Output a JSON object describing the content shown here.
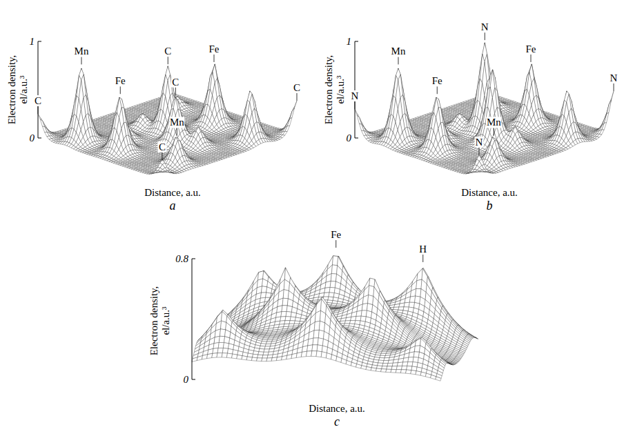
{
  "chart_data": [
    {
      "type": "surface",
      "panel": "a",
      "y_label": "Electron density, el/a.u.³",
      "x_label": "Distance, a.u.",
      "ylim": [
        0,
        1
      ],
      "yticks": [
        0,
        1
      ],
      "tick_labels": "y",
      "peaks": [
        {
          "u": 0,
          "v": 0,
          "density": 0.25
        },
        {
          "u": 1,
          "v": 0,
          "density": 0.2
        },
        {
          "u": 1,
          "v": 1,
          "density": 0.35
        },
        {
          "u": 0.45,
          "v": 0.55,
          "density": 0.7
        },
        {
          "u": 0.62,
          "v": 0.45,
          "density": 0.5
        },
        {
          "u": 0.22,
          "v": 0.12,
          "density": 0.8
        },
        {
          "u": 0.88,
          "v": 0.22,
          "density": 0.3
        },
        {
          "u": 0.5,
          "v": 0.15,
          "density": 0.6
        },
        {
          "u": 0.55,
          "v": 0.8,
          "density": 0.65
        },
        {
          "u": 0.9,
          "v": 0.75,
          "density": 0.55
        },
        {
          "u": 0.3,
          "v": 0.5,
          "density": 0.15
        },
        {
          "u": 0.75,
          "v": 0.5,
          "density": 0.2
        },
        {
          "u": 0.2,
          "v": 0.85,
          "density": 0.12
        },
        {
          "u": 0.38,
          "v": 0.3,
          "density": 0.18
        }
      ],
      "annotations": [
        {
          "text": "C",
          "peak": 0
        },
        {
          "text": "C",
          "peak": 1
        },
        {
          "text": "C",
          "peak": 2
        },
        {
          "text": "C",
          "peak": 3
        },
        {
          "text": "C",
          "peak": 4
        },
        {
          "text": "Mn",
          "peak": 5
        },
        {
          "text": "Mn",
          "peak": 6
        },
        {
          "text": "Fe",
          "peak": 7
        },
        {
          "text": "Fe",
          "peak": 8
        }
      ]
    },
    {
      "type": "surface",
      "panel": "b",
      "y_label": "Electron density, el/a.u.³",
      "x_label": "Distance, a.u.",
      "ylim": [
        0,
        1
      ],
      "yticks": [
        0,
        1
      ],
      "tick_labels": "y",
      "peaks": [
        {
          "u": 0,
          "v": 0,
          "density": 0.3
        },
        {
          "u": 1,
          "v": 0,
          "density": 0.25
        },
        {
          "u": 1,
          "v": 1,
          "density": 0.45
        },
        {
          "u": 0.45,
          "v": 0.55,
          "density": 0.95
        },
        {
          "u": 0.62,
          "v": 0.45,
          "density": 0.8
        },
        {
          "u": 0.22,
          "v": 0.12,
          "density": 0.8
        },
        {
          "u": 0.88,
          "v": 0.22,
          "density": 0.3
        },
        {
          "u": 0.5,
          "v": 0.15,
          "density": 0.6
        },
        {
          "u": 0.55,
          "v": 0.8,
          "density": 0.65
        },
        {
          "u": 0.9,
          "v": 0.75,
          "density": 0.55
        },
        {
          "u": 0.3,
          "v": 0.5,
          "density": 0.15
        },
        {
          "u": 0.75,
          "v": 0.5,
          "density": 0.2
        },
        {
          "u": 0.2,
          "v": 0.85,
          "density": 0.12
        },
        {
          "u": 0.38,
          "v": 0.3,
          "density": 0.18
        }
      ],
      "annotations": [
        {
          "text": "N",
          "peak": 3
        },
        {
          "text": "Fe",
          "peak": 8
        },
        {
          "text": "N",
          "peak": 2
        },
        {
          "text": "Mn",
          "peak": 5
        },
        {
          "text": "N",
          "peak": 0
        },
        {
          "text": "Fe",
          "peak": 7
        },
        {
          "text": "Mn",
          "peak": 6
        },
        {
          "text": "N",
          "peak": 1
        }
      ]
    },
    {
      "type": "surface",
      "panel": "c",
      "y_label": "Electron density, el/a.u.³",
      "x_label": "Distance, a.u.",
      "ylim": [
        0,
        0.8
      ],
      "yticks": [
        0,
        0.8
      ],
      "tick_labels": "y",
      "peaks": [
        {
          "u": 0.15,
          "v": 0.85,
          "density": 0.45
        },
        {
          "u": 0.45,
          "v": 0.85,
          "density": 0.55
        },
        {
          "u": 0.8,
          "v": 0.85,
          "density": 0.55
        },
        {
          "u": 0.3,
          "v": 0.5,
          "density": 0.5
        },
        {
          "u": 0.65,
          "v": 0.5,
          "density": 0.5
        },
        {
          "u": 0.1,
          "v": 0.15,
          "density": 0.4
        },
        {
          "u": 0.5,
          "v": 0.15,
          "density": 0.5
        },
        {
          "u": 0.9,
          "v": 0.15,
          "density": 0.3
        }
      ],
      "annotations": [
        {
          "text": "Fe",
          "peak": 1
        },
        {
          "text": "H",
          "peak": 2
        }
      ]
    }
  ]
}
